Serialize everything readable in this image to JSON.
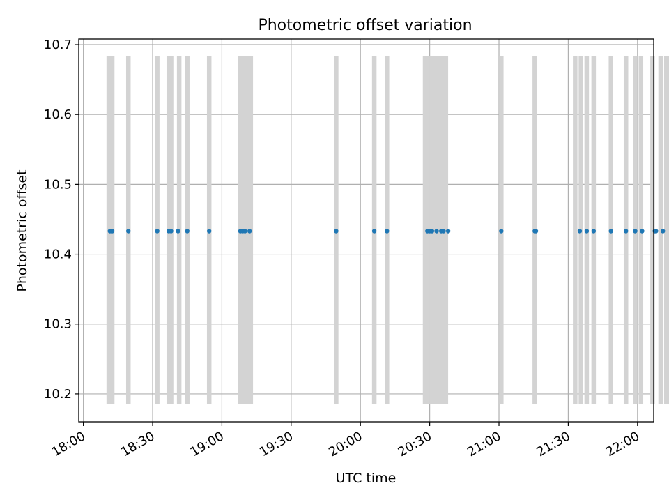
{
  "chart_data": {
    "type": "scatter",
    "title": "Photometric offset variation",
    "xlabel": "UTC time",
    "ylabel": "Photometric offset",
    "x_ticks": [
      "18:00",
      "18:30",
      "19:00",
      "19:30",
      "20:00",
      "20:30",
      "21:00",
      "21:30",
      "22:00"
    ],
    "y_ticks": [
      "10.2",
      "10.3",
      "10.4",
      "10.5",
      "10.6",
      "10.7"
    ],
    "xlim_minutes": [
      -2,
      247
    ],
    "ylim": [
      10.16,
      10.708
    ],
    "grid": true,
    "series": [
      {
        "name": "offset",
        "color": "#1f77b4",
        "x_minutes": [
          11.5,
          12.5,
          19.5,
          32,
          37,
          38,
          41,
          45,
          54.5,
          68,
          69,
          70,
          72,
          109.5,
          126,
          131.5,
          149,
          150,
          151,
          153,
          155,
          156,
          158,
          181,
          195.5,
          196,
          215,
          218,
          221,
          228.5,
          235,
          239,
          242,
          247.5,
          248,
          251,
          255.5
        ],
        "y": [
          10.433,
          10.433,
          10.433,
          10.433,
          10.433,
          10.433,
          10.433,
          10.433,
          10.433,
          10.433,
          10.433,
          10.433,
          10.433,
          10.433,
          10.433,
          10.433,
          10.433,
          10.433,
          10.433,
          10.433,
          10.433,
          10.433,
          10.433,
          10.433,
          10.433,
          10.433,
          10.433,
          10.433,
          10.433,
          10.433,
          10.433,
          10.433,
          10.433,
          10.433,
          10.433,
          10.433,
          10.433
        ]
      }
    ],
    "error_bars": {
      "color": "#d3d3d3",
      "low": 10.185,
      "high": 10.683,
      "x_minutes": [
        11,
        12.5,
        19.5,
        32,
        37,
        38,
        41.5,
        45,
        54.5,
        68,
        69.5,
        71,
        72.5,
        109.5,
        126,
        131.5,
        148,
        149.5,
        151,
        152.5,
        154,
        155.5,
        157,
        181,
        195.5,
        213,
        215.5,
        218,
        221,
        228.5,
        235,
        239,
        241.5,
        246.5,
        250,
        254,
        252.5
      ]
    }
  }
}
